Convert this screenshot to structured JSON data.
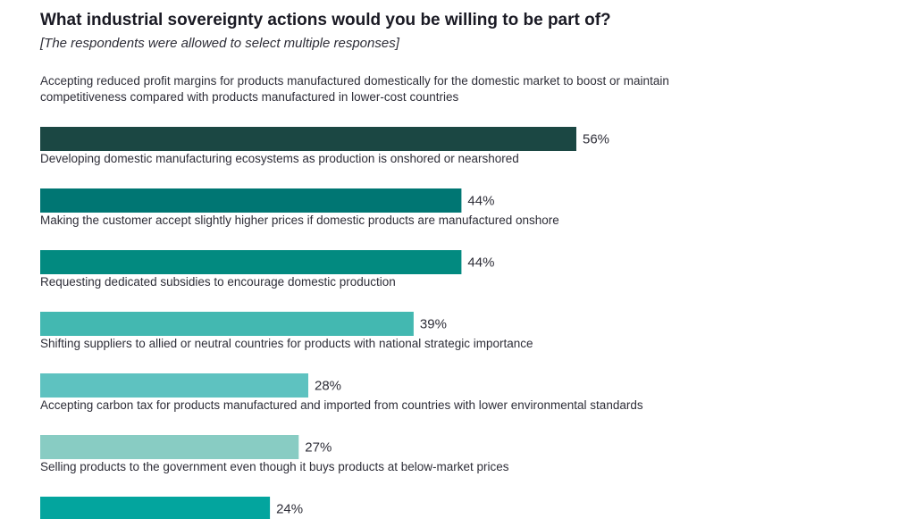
{
  "chart_data": {
    "type": "bar",
    "orientation": "horizontal",
    "title": "What industrial sovereignty actions would you be willing to be part of?",
    "subtitle": "[The respondents were allowed to select multiple responses]",
    "xlim": [
      0,
      100
    ],
    "value_suffix": "%",
    "categories": [
      [
        "Accepting reduced profit margins for products manufactured domestically for the domestic market to boost or maintain",
        "competitiveness compared with products manufactured in lower-cost countries"
      ],
      [
        "Developing domestic manufacturing ecosystems as production is onshored or nearshored"
      ],
      [
        "Making the customer accept slightly higher prices if domestic products are manufactured onshore"
      ],
      [
        "Requesting dedicated subsidies to encourage domestic production"
      ],
      [
        "Shifting suppliers to allied or neutral countries for products with national strategic importance"
      ],
      [
        "Accepting carbon tax for products manufactured and imported from countries with lower environmental standards"
      ],
      [
        "Selling products to the government even though it buys products at below-market prices"
      ]
    ],
    "values": [
      56,
      44,
      44,
      39,
      28,
      27,
      24
    ],
    "value_labels": [
      "56%",
      "44%",
      "44%",
      "39%",
      "28%",
      "27%",
      "24%"
    ],
    "colors": [
      "#1b4743",
      "#007673",
      "#028a80",
      "#43b8b1",
      "#5ec2c0",
      "#88ccc3",
      "#03a59e"
    ]
  }
}
